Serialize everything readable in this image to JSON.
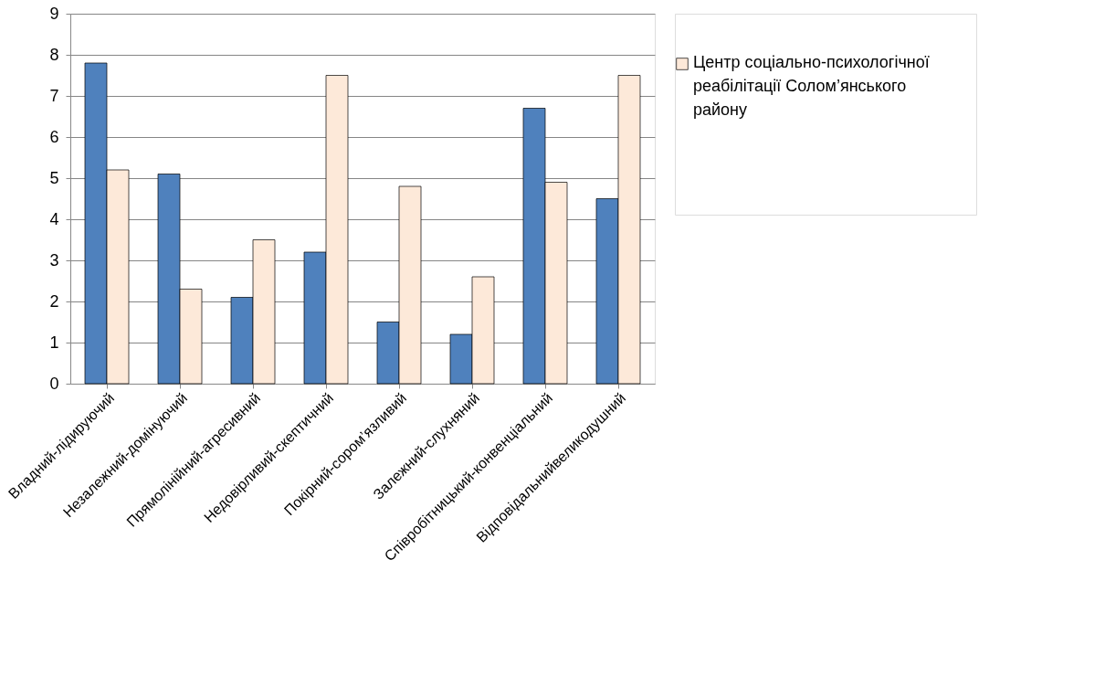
{
  "chart_data": {
    "type": "bar",
    "categories": [
      "Владний-лідируючий",
      "Незалежний-домінуючий",
      "Прямолінійний-агресивний",
      "Недовірливий-скептичний",
      "Покірний-сором’язливий",
      "Залежний-слухняний",
      "Співробітницький-конвенціальний",
      "Відповідальнийвеликодушний"
    ],
    "series": [
      {
        "color": "#4f81bd",
        "values": [
          7.8,
          5.1,
          2.1,
          3.2,
          1.5,
          1.2,
          6.7,
          4.5
        ]
      },
      {
        "name": "Центр соціально-психологічної реабілітації Солом’янського району",
        "color": "#fde9d9",
        "values": [
          5.2,
          2.3,
          3.5,
          7.5,
          4.8,
          2.6,
          4.9,
          7.5
        ]
      }
    ],
    "ylim": [
      0,
      9
    ],
    "yticks": [
      0,
      1,
      2,
      3,
      4,
      5,
      6,
      7,
      8,
      9
    ],
    "grid": "y",
    "legend": "right"
  }
}
